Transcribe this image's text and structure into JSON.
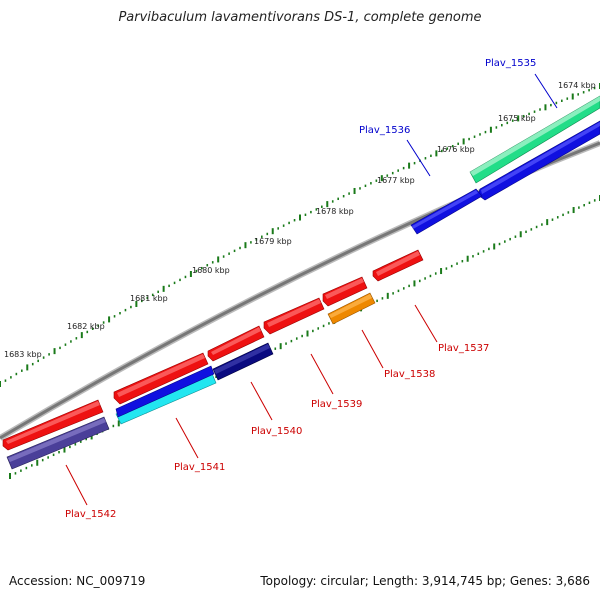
{
  "title": "Parvibaculum lavamentivorans DS-1, complete genome",
  "footer": {
    "accession": "Accession: NC_009719",
    "summary": "Topology: circular; Length: 3,914,745 bp; Genes: 3,686"
  },
  "scale": {
    "ticks": [
      {
        "label": "1674 kbp"
      },
      {
        "label": "1675 kbp"
      },
      {
        "label": "1676 kbp"
      },
      {
        "label": "1677 kbp"
      },
      {
        "label": "1678 kbp"
      },
      {
        "label": "1679 kbp"
      },
      {
        "label": "1680 kbp"
      },
      {
        "label": "1681 kbp"
      },
      {
        "label": "1682 kbp"
      },
      {
        "label": "1683 kbp"
      }
    ]
  },
  "genes": [
    {
      "id": "Plav_1535",
      "strand": "forward",
      "color": "#1010e0",
      "label_color": "#0000cc"
    },
    {
      "id": "Plav_1536",
      "strand": "forward",
      "color": "#1010e0",
      "label_color": "#0000cc"
    },
    {
      "id": "Plav_1537",
      "strand": "reverse",
      "color": "#ee1111",
      "label_color": "#cc0000"
    },
    {
      "id": "Plav_1538",
      "strand": "reverse",
      "color": "#ee8800",
      "label_color": "#cc0000"
    },
    {
      "id": "Plav_1539",
      "strand": "reverse",
      "color": "#ee1111",
      "label_color": "#cc0000"
    },
    {
      "id": "Plav_1540",
      "strand": "reverse",
      "color": "#0a0a80",
      "label_color": "#cc0000"
    },
    {
      "id": "Plav_1541",
      "strand": "reverse",
      "color": "#1010e0",
      "label_color": "#cc0000"
    },
    {
      "id": "Plav_1542",
      "strand": "reverse",
      "color": "#4a3f99",
      "label_color": "#cc0000"
    }
  ],
  "colors": {
    "backbone": "#888888",
    "tick": "#1a7a1a",
    "forward_label": "#0000cc",
    "reverse_label": "#cc0000",
    "cds_green": "#22dd88",
    "cds_cyan": "#22e6f0",
    "cds_red": "#ee1111"
  }
}
